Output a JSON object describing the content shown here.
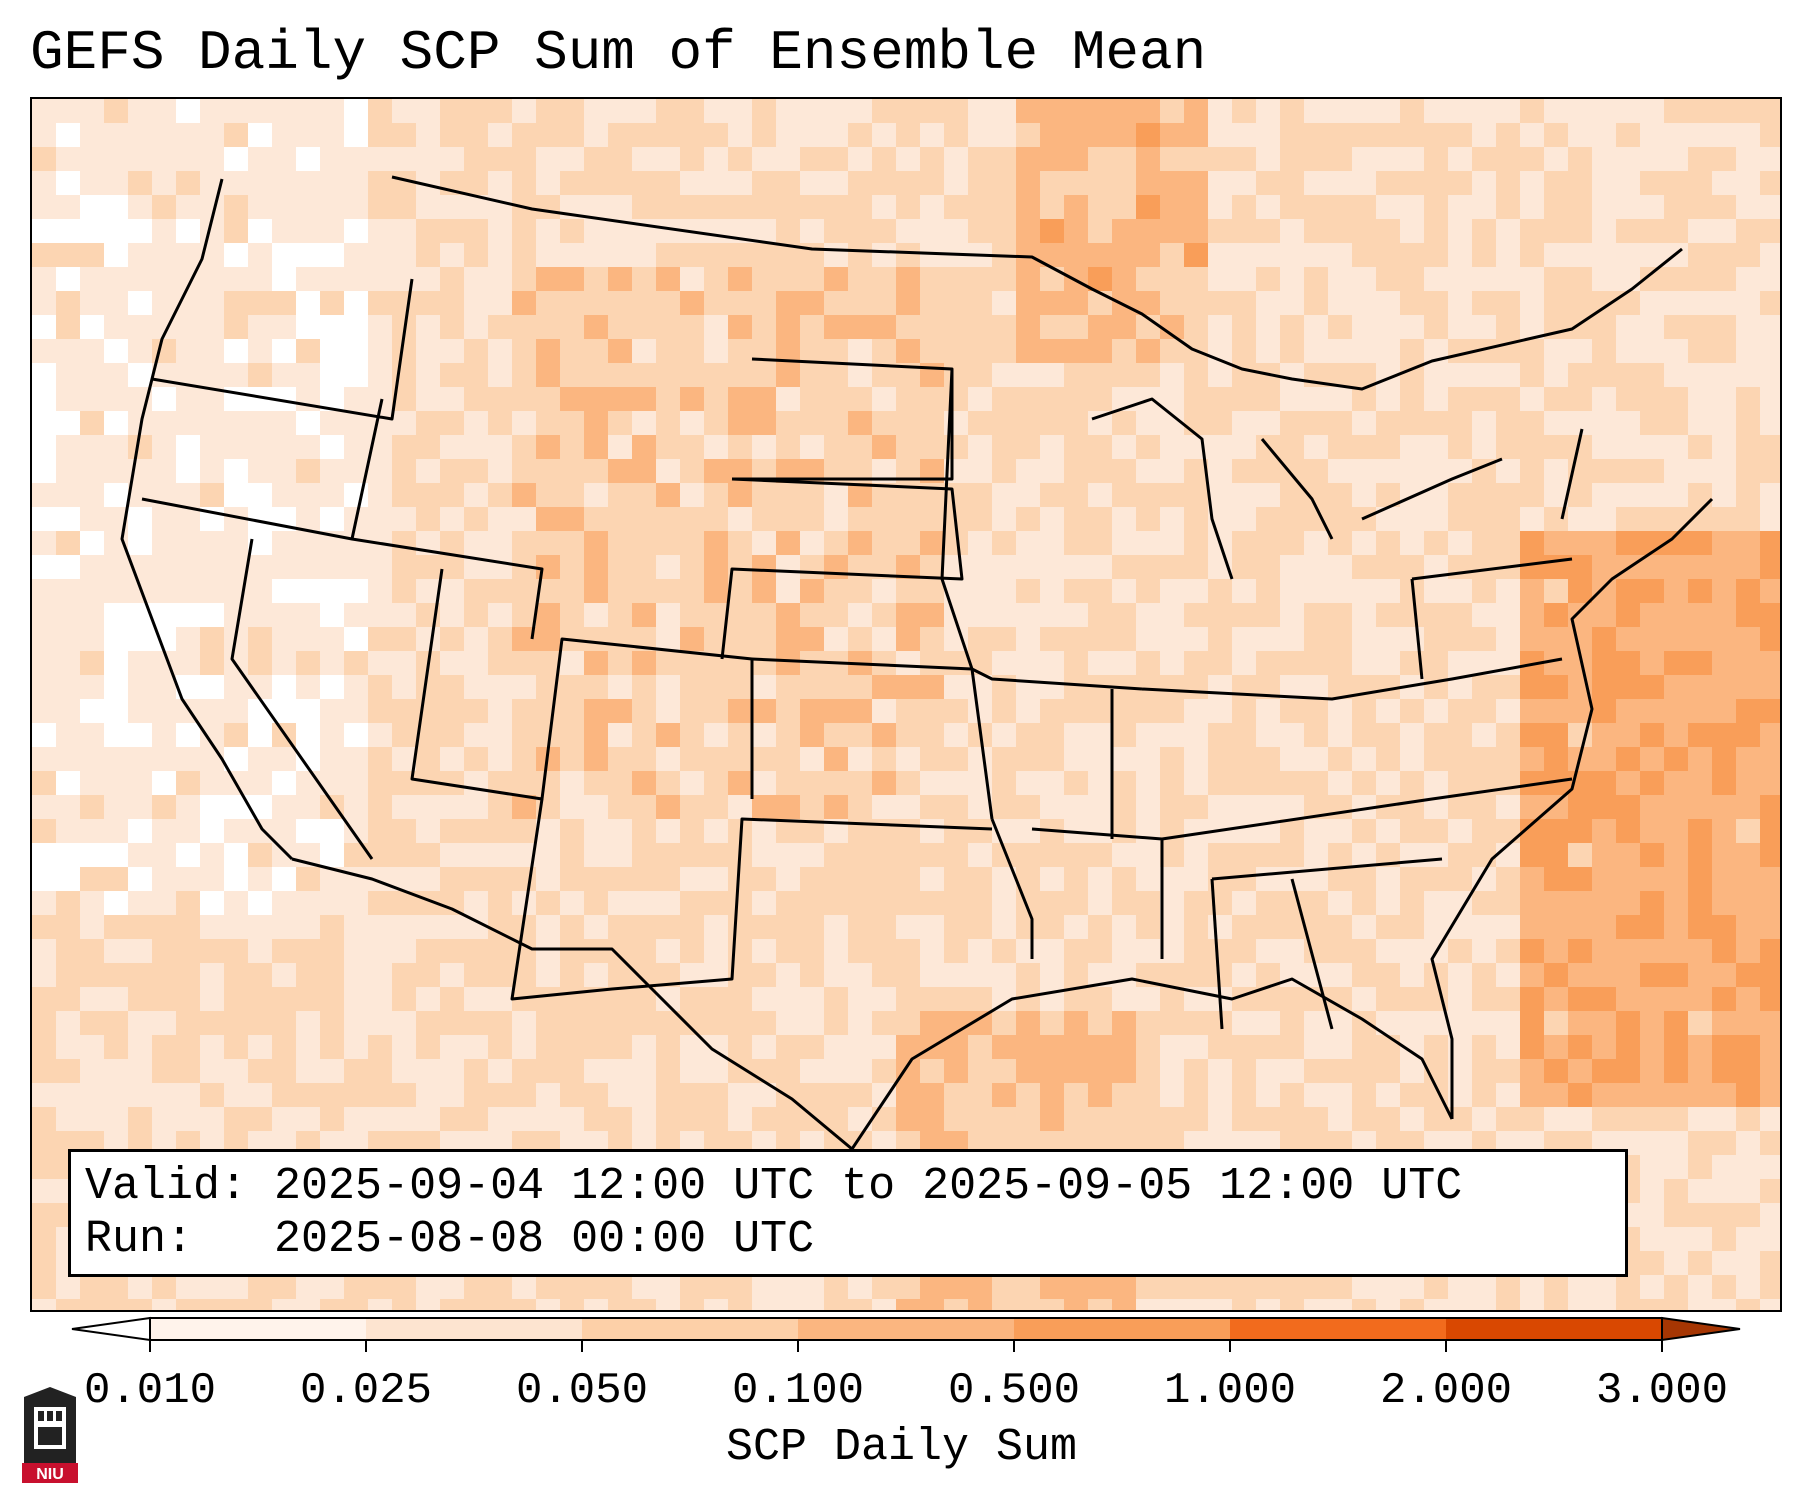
{
  "title": "GEFS Daily SCP Sum of Ensemble Mean",
  "map": {
    "projection": "lambert-conformal",
    "region": "CONUS",
    "variable": "SCP Daily Sum",
    "field_levels": [
      0.01,
      0.025,
      0.05,
      0.1,
      0.5,
      1.0,
      2.0,
      3.0
    ],
    "field_description_colors": {
      "lightest": "#fde8d8",
      "light": "#fcd5b2",
      "medium": "#fbb680",
      "strong": "#f99e59"
    }
  },
  "info_box": {
    "valid_label": "Valid:",
    "valid_value": "2025-09-04 12:00 UTC to 2025-09-05 12:00 UTC",
    "run_label": "Run:",
    "run_value": "2025-08-08 00:00 UTC"
  },
  "colorbar": {
    "label": "SCP Daily Sum",
    "ticks": [
      "0.010",
      "0.025",
      "0.050",
      "0.100",
      "0.500",
      "1.000",
      "2.000",
      "3.000"
    ],
    "colors": [
      "#fff3eb",
      "#fde4d0",
      "#fdd0a8",
      "#fbb680",
      "#f99e59",
      "#f26b1d",
      "#d94801"
    ],
    "under_color": "#ffffff",
    "over_color": "#a63603"
  },
  "logo": {
    "name": "niu-logo",
    "text": "NIU",
    "color": "#c8102e"
  }
}
